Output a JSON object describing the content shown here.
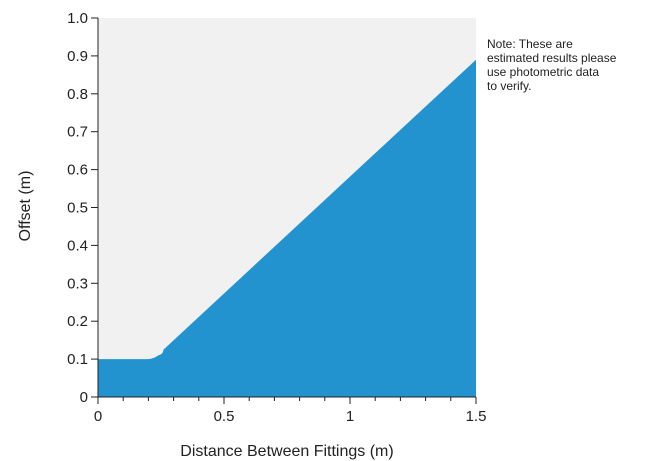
{
  "chart_data": {
    "type": "area",
    "title": "",
    "xlabel": "Distance Between Fittings (m)",
    "ylabel": "Offset (m)",
    "xlim": [
      0,
      1.5
    ],
    "ylim": [
      0,
      1.0
    ],
    "x_ticks": [
      0,
      0.5,
      1,
      1.5
    ],
    "x_tick_labels": [
      "0",
      "0.5",
      "1",
      "1.5"
    ],
    "x_minor_step": 0.1,
    "y_ticks": [
      0,
      0.1,
      0.2,
      0.3,
      0.4,
      0.5,
      0.6,
      0.7,
      0.8,
      0.9,
      1.0
    ],
    "y_tick_labels": [
      "0",
      "0.1",
      "0.2",
      "0.3",
      "0.4",
      "0.5",
      "0.6",
      "0.7",
      "0.8",
      "0.9",
      "1.0"
    ],
    "grid": false,
    "series": [
      {
        "x": [
          0,
          0.1,
          0.2,
          0.22,
          0.24,
          0.26,
          1.5
        ],
        "y": [
          0.1,
          0.1,
          0.1,
          0.103,
          0.11,
          0.125,
          0.89
        ],
        "color": "#2393d0"
      }
    ],
    "background_color": "#f1f1f1",
    "note_lines": [
      "Note: These are",
      "estimated results please",
      "use photometric data",
      "to verify."
    ]
  }
}
